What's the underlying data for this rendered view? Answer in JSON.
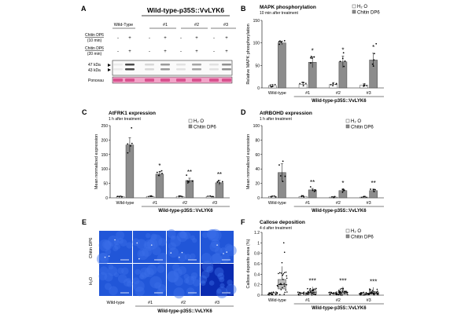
{
  "panelA": {
    "letter": "A",
    "title": "Wild-type-p35S::VvLYK6",
    "col_wt": "Wild-Type",
    "cols": [
      "#1",
      "#2",
      "#3"
    ],
    "row1_label": [
      "Chitin DP6",
      "(10 min)"
    ],
    "row2_label": [
      "Chitin DP6",
      "(20 min)"
    ],
    "row1_signs": [
      "-",
      "+",
      "-",
      "+",
      "-",
      "+",
      "-",
      "+"
    ],
    "row2_signs": [
      "-",
      "+",
      "-",
      "+",
      "-",
      "+",
      "-",
      "+"
    ],
    "kda_47": "47 kDa",
    "kda_43": "43 kDa",
    "ponceau": "Ponceau"
  },
  "panelB": {
    "letter": "B",
    "title": "MAPK phosphorylation",
    "subtitle": "10 min after treatment",
    "ylabel": "Relative MAPK phosphorylation",
    "group_label": "Wild-type-p35S::VvLYK6"
  },
  "panelC": {
    "letter": "C",
    "title": "AtFRK1 expression",
    "subtitle": "1 h after treatment",
    "ylabel": "Mean normalized expression",
    "group_label": "Wild-type-p35S::VvLYK6"
  },
  "panelD": {
    "letter": "D",
    "title": "AtRBOHD expression",
    "subtitle": "1 h after treatment",
    "ylabel": "Mean normalized expression",
    "group_label": "Wild-type-p35S::VvLYK6"
  },
  "panelE": {
    "letter": "E",
    "row_labels": [
      "Chitin DP6",
      "H₂O"
    ],
    "col_labels": [
      "Wild-type",
      "#1",
      "#2",
      "#3"
    ],
    "group_label": "Wild-type-p35S::VvLYK6"
  },
  "panelF": {
    "letter": "F",
    "title": "Callose deposition",
    "subtitle": "4 d after treatment",
    "ylabel": "Callose deposits area (%)",
    "group_label": "Wild-type-p35S::VvLYK6"
  },
  "legend": {
    "h2o": "H₂ O",
    "chitin": "Chitin DP6"
  },
  "chart_data": [
    {
      "id": "B",
      "type": "bar",
      "categories": [
        "Wild-type",
        "#1",
        "#2",
        "#3"
      ],
      "ylim": [
        0,
        150
      ],
      "yticks": [
        0,
        50,
        100,
        150
      ],
      "series": [
        {
          "name": "H₂ O",
          "values": [
            5,
            8,
            8,
            6
          ]
        },
        {
          "name": "Chitin DP6",
          "values": [
            100,
            57,
            58,
            62
          ]
        }
      ],
      "errors": [
        [
          3,
          4
        ],
        [
          5,
          12
        ],
        [
          4,
          13
        ],
        [
          3,
          15
        ]
      ],
      "significance": [
        "",
        "*",
        "*",
        "*"
      ]
    },
    {
      "id": "C",
      "type": "bar",
      "categories": [
        "Wild-type",
        "#1",
        "#2",
        "#3"
      ],
      "ylim": [
        0,
        250
      ],
      "yticks": [
        0,
        50,
        100,
        150,
        200,
        250
      ],
      "series": [
        {
          "name": "H₂ O",
          "values": [
            5,
            5,
            5,
            5
          ]
        },
        {
          "name": "Chitin DP6",
          "values": [
            183,
            82,
            60,
            52
          ]
        }
      ],
      "errors": [
        [
          2,
          25
        ],
        [
          2,
          8
        ],
        [
          2,
          8
        ],
        [
          2,
          8
        ]
      ],
      "significance": [
        "",
        "*",
        "**",
        "**"
      ]
    },
    {
      "id": "D",
      "type": "bar",
      "categories": [
        "Wild-type",
        "#1",
        "#2",
        "#3"
      ],
      "ylim": [
        0,
        100
      ],
      "yticks": [
        0,
        20,
        40,
        60,
        80,
        100
      ],
      "series": [
        {
          "name": "H₂ O",
          "values": [
            2,
            2,
            1,
            1
          ]
        },
        {
          "name": "Chitin DP6",
          "values": [
            35,
            11,
            10,
            10
          ]
        }
      ],
      "errors": [
        [
          1,
          12
        ],
        [
          1,
          2
        ],
        [
          1,
          2
        ],
        [
          1,
          2
        ]
      ],
      "significance": [
        "",
        "**",
        "*",
        "**"
      ]
    },
    {
      "id": "F",
      "type": "box",
      "categories": [
        "Wild-type",
        "#1",
        "#2",
        "#3"
      ],
      "ylim": [
        0,
        1.2
      ],
      "yticks": [
        0,
        0.2,
        0.4,
        0.6,
        0.8,
        1.0,
        1.2
      ],
      "series": [
        {
          "name": "H₂ O",
          "medians": [
            0.03,
            0.02,
            0.02,
            0.02
          ]
        },
        {
          "name": "Chitin DP6",
          "medians": [
            0.2,
            0.05,
            0.05,
            0.04
          ],
          "q1": [
            0.12,
            0.02,
            0.02,
            0.02
          ],
          "q3": [
            0.3,
            0.08,
            0.08,
            0.07
          ]
        }
      ],
      "significance": [
        "",
        "***",
        "***",
        "***"
      ]
    }
  ]
}
